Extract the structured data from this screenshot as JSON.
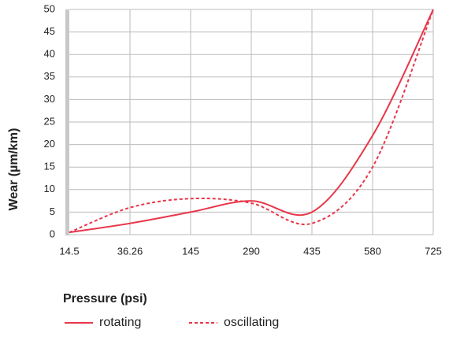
{
  "chart_data": {
    "type": "line",
    "y_label": "Wear (µm/km)",
    "legend_title": "Pressure (psi)",
    "categories": [
      "14.5",
      "36.26",
      "145",
      "290",
      "435",
      "580",
      "725"
    ],
    "series": [
      {
        "name": "rotating",
        "color": "#e8364a",
        "dash": false,
        "values": [
          0.5,
          2.5,
          5,
          7.5,
          5,
          22,
          50
        ]
      },
      {
        "name": "oscillating",
        "color": "#e8364a",
        "dash": true,
        "values": [
          0.5,
          6,
          8,
          7,
          2.5,
          15,
          50
        ]
      }
    ],
    "ylim": [
      0,
      50
    ],
    "yticks": [
      0,
      5,
      10,
      15,
      20,
      25,
      30,
      35,
      40,
      45,
      50
    ],
    "grid": true
  }
}
